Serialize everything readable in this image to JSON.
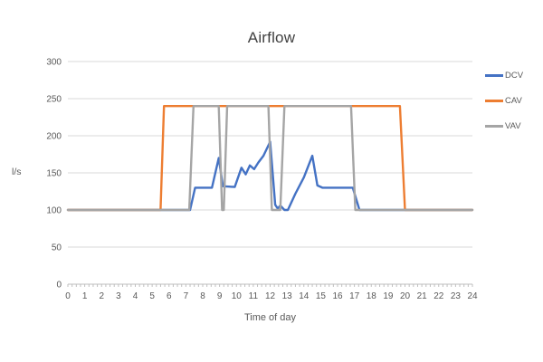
{
  "chart_data": {
    "type": "line",
    "title": "Airflow",
    "xlabel": "Time of day",
    "ylabel": "l/s",
    "xlim": [
      0,
      24
    ],
    "ylim": [
      0,
      300
    ],
    "xticks": [
      0,
      1,
      2,
      3,
      4,
      5,
      6,
      7,
      8,
      9,
      10,
      11,
      12,
      13,
      14,
      15,
      16,
      17,
      18,
      19,
      20,
      21,
      22,
      23,
      24
    ],
    "yticks": [
      0,
      50,
      100,
      150,
      200,
      250,
      300
    ],
    "x_minor_ticks_per_unit": 4,
    "grid": "horizontal",
    "legend_position": "right",
    "series": [
      {
        "name": "DCV",
        "color": "#4472C4",
        "points": [
          [
            0,
            100
          ],
          [
            7.25,
            100
          ],
          [
            7.55,
            130
          ],
          [
            8.55,
            130
          ],
          [
            8.95,
            170
          ],
          [
            9.2,
            132
          ],
          [
            9.9,
            131
          ],
          [
            10.3,
            157
          ],
          [
            10.55,
            148
          ],
          [
            10.8,
            160
          ],
          [
            11.05,
            155
          ],
          [
            11.3,
            164
          ],
          [
            11.6,
            173
          ],
          [
            12.0,
            192
          ],
          [
            12.3,
            107
          ],
          [
            12.45,
            102
          ],
          [
            12.6,
            106
          ],
          [
            12.85,
            100
          ],
          [
            13.05,
            100
          ],
          [
            13.5,
            122
          ],
          [
            14.0,
            144
          ],
          [
            14.5,
            173
          ],
          [
            14.8,
            133
          ],
          [
            15.1,
            130
          ],
          [
            16.9,
            130
          ],
          [
            17.3,
            100
          ],
          [
            24,
            100
          ]
        ]
      },
      {
        "name": "CAV",
        "color": "#ED7D31",
        "points": [
          [
            0,
            100
          ],
          [
            5.5,
            100
          ],
          [
            5.7,
            240
          ],
          [
            19.7,
            240
          ],
          [
            20.0,
            100
          ],
          [
            24,
            100
          ]
        ]
      },
      {
        "name": "VAV",
        "color": "#A5A5A5",
        "points": [
          [
            0,
            100
          ],
          [
            7.2,
            100
          ],
          [
            7.45,
            240
          ],
          [
            8.95,
            240
          ],
          [
            9.15,
            100
          ],
          [
            9.25,
            100
          ],
          [
            9.45,
            240
          ],
          [
            11.9,
            240
          ],
          [
            12.1,
            100
          ],
          [
            12.6,
            100
          ],
          [
            12.85,
            240
          ],
          [
            16.8,
            240
          ],
          [
            17.05,
            100
          ],
          [
            24,
            100
          ]
        ]
      }
    ]
  },
  "colors": {
    "background": "#FFFFFF",
    "gridline": "#D9D9D9",
    "axis_line": "#BFBFBF",
    "tick_label": "#595959",
    "title_text": "#404040"
  }
}
